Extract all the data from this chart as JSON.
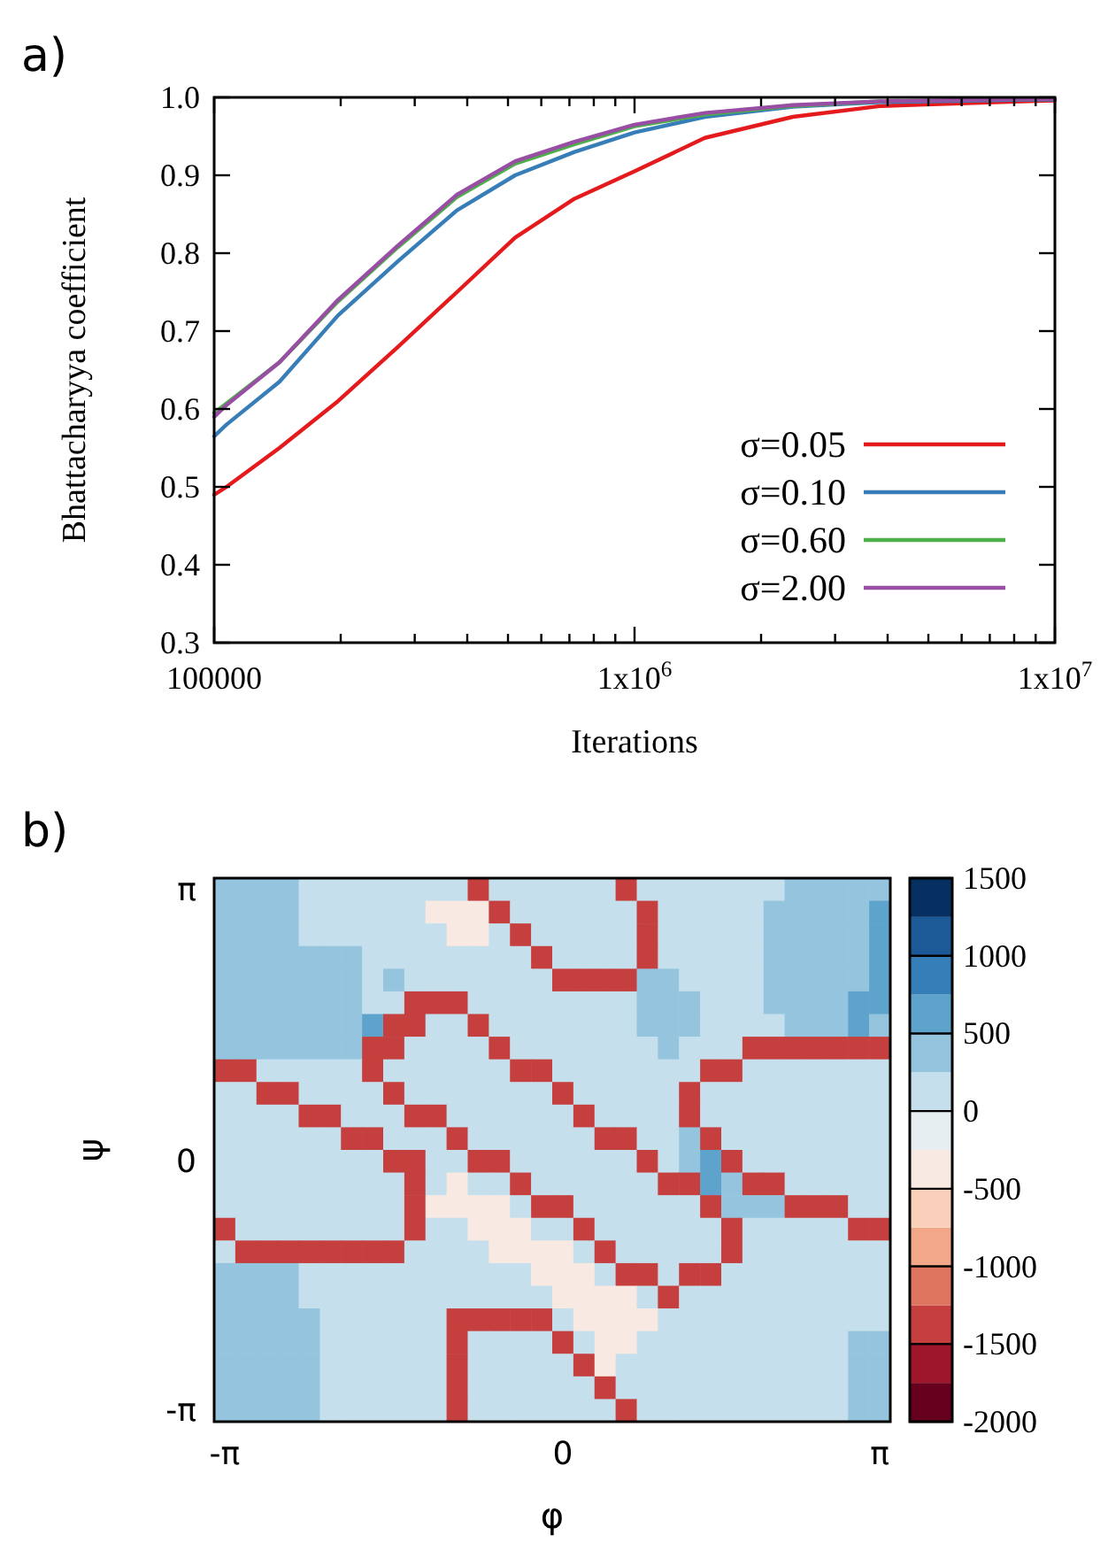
{
  "chart_data": [
    {
      "type": "line",
      "title": "a)",
      "xlabel": "Iterations",
      "ylabel": "Bhattacharyya coefficient",
      "log": "x",
      "xlim": [
        100000,
        10000000
      ],
      "ylim": [
        0.3,
        1.0
      ],
      "xticks": [
        100000,
        {
          "value": 200000,
          "label": null
        },
        {
          "value": 300000,
          "label": null
        },
        {
          "value": 400000,
          "label": null
        },
        {
          "value": 500000,
          "label": null
        },
        {
          "value": 600000,
          "label": null
        },
        {
          "value": 700000,
          "label": null
        },
        {
          "value": 800000,
          "label": null
        },
        {
          "value": 900000,
          "label": null
        },
        {
          "value": 1000000,
          "label": "1x10$^{6}$"
        },
        {
          "value": 2000000,
          "label": null
        },
        {
          "value": 3000000,
          "label": null
        },
        {
          "value": 4000000,
          "label": null
        },
        {
          "value": 5000000,
          "label": null
        },
        {
          "value": 6000000,
          "label": null
        },
        {
          "value": 7000000,
          "label": null
        },
        {
          "value": 8000000,
          "label": null
        },
        {
          "value": 9000000,
          "label": null
        },
        {
          "value": 10000000,
          "label": "1x10$^{7}$"
        }
      ],
      "yticks": [
        0.3,
        0.4,
        0.5,
        0.6,
        0.7,
        0.8,
        0.9,
        {
          "value": 1.0,
          "label": "1.0"
        }
      ],
      "grid": false,
      "legend": "bottom right",
      "marker": "none",
      "line_style": "solid",
      "x": [
        100000,
        107000,
        143000,
        197000,
        274000,
        378000,
        520000,
        720000,
        1000000,
        1470000,
        2380000,
        3870000,
        8650000,
        10000000
      ],
      "series": [
        {
          "name": "σ=0.05",
          "color": "#e41a1c",
          "values": [
            0.49,
            0.5,
            0.55,
            0.61,
            0.68,
            0.75,
            0.82,
            0.87,
            0.905,
            0.948,
            0.975,
            0.989,
            0.995,
            0.996
          ]
        },
        {
          "name": "σ=0.10",
          "color": "#377eb8",
          "values": [
            0.565,
            0.58,
            0.635,
            0.72,
            0.79,
            0.855,
            0.9,
            0.93,
            0.955,
            0.975,
            0.988,
            0.994,
            0.997,
            0.997
          ]
        },
        {
          "name": "σ=0.60",
          "color": "#4daf4a",
          "values": [
            0.595,
            0.607,
            0.66,
            0.738,
            0.808,
            0.872,
            0.915,
            0.94,
            0.963,
            0.978,
            0.989,
            0.995,
            null,
            null
          ]
        },
        {
          "name": "σ=2.00",
          "color": "#984ea3",
          "values": [
            0.59,
            0.605,
            0.66,
            0.74,
            0.81,
            0.875,
            0.918,
            0.943,
            0.965,
            0.98,
            0.99,
            0.995,
            0.998,
            0.998
          ]
        }
      ]
    },
    {
      "type": "heatmap",
      "title": "b)",
      "xlabel": "φ",
      "ylabel": "ψ",
      "clim": [
        -2000,
        1500
      ],
      "cticks": [
        -2000,
        -1500,
        -1000,
        -500,
        0,
        500,
        1000,
        1500
      ],
      "categories": [
        "-π",
        null,
        null,
        null,
        null,
        null,
        null,
        null,
        null,
        null,
        null,
        null,
        null,
        null,
        null,
        null,
        "0",
        null,
        null,
        null,
        null,
        null,
        null,
        null,
        null,
        null,
        null,
        null,
        null,
        null,
        null,
        "π"
      ],
      "y_categories": [
        "π",
        null,
        null,
        null,
        null,
        null,
        null,
        null,
        null,
        null,
        null,
        null,
        "0",
        null,
        null,
        null,
        null,
        null,
        null,
        null,
        null,
        null,
        null,
        "-π"
      ],
      "cells": [
        [
          400,
          400,
          400,
          400,
          100,
          100,
          100,
          100,
          100,
          100,
          100,
          100,
          -1500,
          100,
          100,
          100,
          100,
          100,
          100,
          -1500,
          100,
          100,
          100,
          100,
          100,
          100,
          100,
          400,
          400,
          400,
          400,
          400
        ],
        [
          400,
          400,
          400,
          400,
          100,
          100,
          100,
          100,
          100,
          100,
          -300,
          -300,
          -300,
          -1500,
          100,
          100,
          100,
          100,
          100,
          100,
          -1500,
          100,
          100,
          100,
          100,
          100,
          400,
          400,
          400,
          400,
          400,
          700
        ],
        [
          400,
          400,
          400,
          400,
          100,
          100,
          100,
          100,
          100,
          100,
          100,
          -300,
          -300,
          100,
          -1500,
          100,
          100,
          100,
          100,
          100,
          -1500,
          100,
          100,
          100,
          100,
          100,
          400,
          400,
          400,
          400,
          400,
          700
        ],
        [
          400,
          400,
          400,
          400,
          400,
          400,
          400,
          100,
          100,
          100,
          100,
          100,
          100,
          100,
          100,
          -1500,
          100,
          100,
          100,
          100,
          -1500,
          100,
          100,
          100,
          100,
          100,
          400,
          400,
          400,
          400,
          400,
          700
        ],
        [
          400,
          400,
          400,
          400,
          400,
          400,
          400,
          100,
          400,
          100,
          100,
          100,
          100,
          100,
          100,
          100,
          -1500,
          -1500,
          -1500,
          -1500,
          400,
          400,
          100,
          100,
          100,
          100,
          400,
          400,
          400,
          400,
          400,
          700
        ],
        [
          400,
          400,
          400,
          400,
          400,
          400,
          400,
          100,
          100,
          -1500,
          -1500,
          -1500,
          100,
          100,
          100,
          100,
          100,
          100,
          100,
          100,
          400,
          400,
          400,
          100,
          100,
          100,
          400,
          400,
          400,
          400,
          700,
          700
        ],
        [
          400,
          400,
          400,
          400,
          400,
          400,
          400,
          700,
          -1500,
          -1500,
          100,
          100,
          -1500,
          100,
          100,
          100,
          100,
          100,
          100,
          100,
          400,
          400,
          400,
          100,
          100,
          100,
          100,
          400,
          400,
          400,
          700,
          400
        ],
        [
          400,
          400,
          400,
          400,
          400,
          400,
          400,
          -1500,
          -1500,
          100,
          100,
          100,
          100,
          -1500,
          100,
          100,
          100,
          100,
          100,
          100,
          100,
          400,
          100,
          100,
          100,
          -1500,
          -1500,
          -1500,
          -1500,
          -1500,
          -1500,
          -1500
        ],
        [
          -1500,
          -1500,
          100,
          100,
          100,
          100,
          100,
          -1500,
          100,
          100,
          100,
          100,
          100,
          100,
          -1500,
          -1500,
          100,
          100,
          100,
          100,
          100,
          100,
          100,
          -1500,
          -1500,
          100,
          100,
          100,
          100,
          100,
          100,
          100
        ],
        [
          100,
          100,
          -1500,
          -1500,
          100,
          100,
          100,
          100,
          -1500,
          100,
          100,
          100,
          100,
          100,
          100,
          100,
          -1500,
          100,
          100,
          100,
          100,
          100,
          -1500,
          100,
          100,
          100,
          100,
          100,
          100,
          100,
          100,
          100
        ],
        [
          100,
          100,
          100,
          100,
          -1500,
          -1500,
          100,
          100,
          100,
          -1500,
          -1500,
          100,
          100,
          100,
          100,
          100,
          100,
          -1500,
          100,
          100,
          100,
          100,
          -1500,
          100,
          100,
          100,
          100,
          100,
          100,
          100,
          100,
          100
        ],
        [
          100,
          100,
          100,
          100,
          100,
          100,
          -1500,
          -1500,
          100,
          100,
          100,
          -1500,
          100,
          100,
          100,
          100,
          100,
          100,
          -1500,
          -1500,
          100,
          100,
          400,
          -1500,
          100,
          100,
          100,
          100,
          100,
          100,
          100,
          100
        ],
        [
          100,
          100,
          100,
          100,
          100,
          100,
          100,
          100,
          -1500,
          -1500,
          100,
          100,
          -1500,
          -1500,
          100,
          100,
          100,
          100,
          100,
          100,
          -1500,
          100,
          400,
          700,
          -1500,
          100,
          100,
          100,
          100,
          100,
          100,
          100
        ],
        [
          100,
          100,
          100,
          100,
          100,
          100,
          100,
          100,
          100,
          -1500,
          100,
          -300,
          100,
          100,
          -1500,
          100,
          100,
          100,
          100,
          100,
          100,
          -1500,
          -1500,
          700,
          400,
          -1500,
          -1500,
          100,
          100,
          100,
          100,
          100
        ],
        [
          100,
          100,
          100,
          100,
          100,
          100,
          100,
          100,
          100,
          -1500,
          -300,
          -300,
          -300,
          -300,
          100,
          -1500,
          -1500,
          100,
          100,
          100,
          100,
          100,
          100,
          -1500,
          400,
          400,
          400,
          -1500,
          -1500,
          -1500,
          100,
          100
        ],
        [
          -1500,
          100,
          100,
          100,
          100,
          100,
          100,
          100,
          100,
          -1500,
          100,
          100,
          -300,
          -300,
          -300,
          100,
          100,
          -1500,
          100,
          100,
          100,
          100,
          100,
          100,
          -1500,
          100,
          100,
          100,
          100,
          100,
          -1500,
          -1500
        ],
        [
          100,
          -1500,
          -1500,
          -1500,
          -1500,
          -1500,
          -1500,
          -1500,
          -1500,
          100,
          100,
          100,
          100,
          -300,
          -300,
          -300,
          -300,
          100,
          -1500,
          100,
          100,
          100,
          100,
          100,
          -1500,
          100,
          100,
          100,
          100,
          100,
          100,
          100
        ],
        [
          400,
          400,
          400,
          400,
          100,
          100,
          100,
          100,
          100,
          100,
          100,
          100,
          100,
          100,
          100,
          -300,
          -300,
          -300,
          100,
          -1500,
          -1500,
          100,
          -1500,
          -1500,
          100,
          100,
          100,
          100,
          100,
          100,
          100,
          100
        ],
        [
          400,
          400,
          400,
          400,
          100,
          100,
          100,
          100,
          100,
          100,
          100,
          100,
          100,
          100,
          100,
          100,
          -300,
          -300,
          -300,
          -300,
          100,
          -1500,
          100,
          100,
          100,
          100,
          100,
          100,
          100,
          100,
          100,
          100
        ],
        [
          400,
          400,
          400,
          400,
          400,
          100,
          100,
          100,
          100,
          100,
          100,
          -1500,
          -1500,
          -1500,
          -1500,
          -1500,
          100,
          -300,
          -300,
          -300,
          -300,
          100,
          100,
          100,
          100,
          100,
          100,
          100,
          100,
          100,
          100,
          100
        ],
        [
          400,
          400,
          400,
          400,
          400,
          100,
          100,
          100,
          100,
          100,
          100,
          -1500,
          100,
          100,
          100,
          100,
          -1500,
          100,
          -300,
          -300,
          100,
          100,
          100,
          100,
          100,
          100,
          100,
          100,
          100,
          100,
          400,
          400
        ],
        [
          400,
          400,
          400,
          400,
          400,
          100,
          100,
          100,
          100,
          100,
          100,
          -1500,
          100,
          100,
          100,
          100,
          100,
          -1500,
          -300,
          100,
          100,
          100,
          100,
          100,
          100,
          100,
          100,
          100,
          100,
          100,
          400,
          400
        ],
        [
          400,
          400,
          400,
          400,
          400,
          100,
          100,
          100,
          100,
          100,
          100,
          -1500,
          100,
          100,
          100,
          100,
          100,
          100,
          -1500,
          100,
          100,
          100,
          100,
          100,
          100,
          100,
          100,
          100,
          100,
          100,
          400,
          400
        ],
        [
          400,
          400,
          400,
          400,
          400,
          100,
          100,
          100,
          100,
          100,
          100,
          -1500,
          100,
          100,
          100,
          100,
          100,
          100,
          100,
          -1500,
          100,
          100,
          100,
          100,
          100,
          100,
          100,
          100,
          100,
          100,
          400,
          400
        ]
      ]
    }
  ]
}
